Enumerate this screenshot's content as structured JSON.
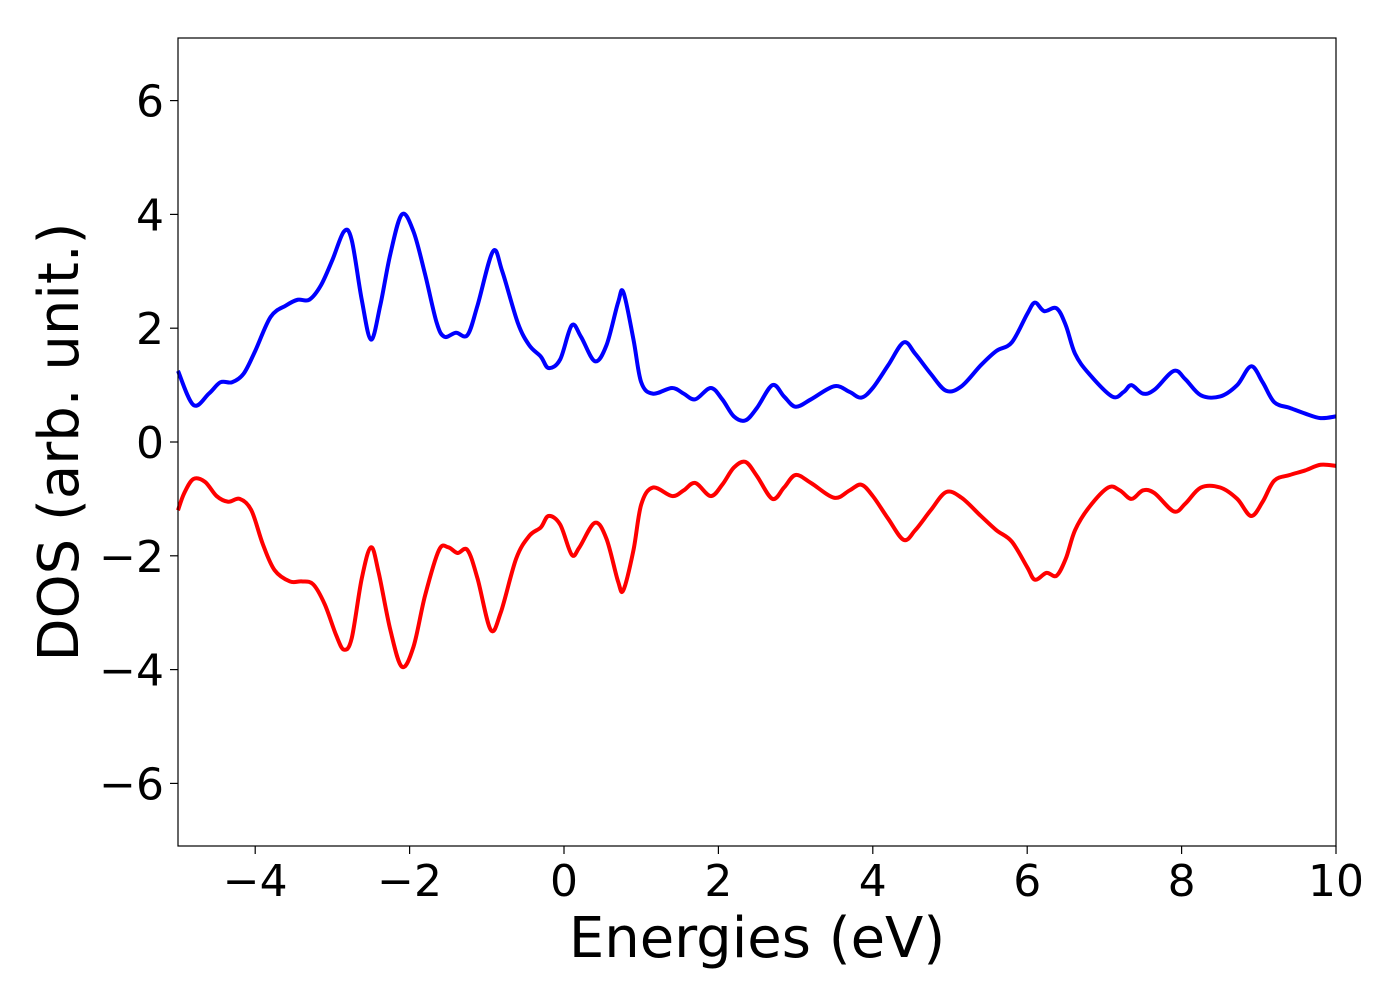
{
  "chart_data": {
    "type": "line",
    "title": "",
    "xlabel": "Energies (eV)",
    "ylabel": "DOS (arb. unit.)",
    "xlim": [
      -5,
      10
    ],
    "ylim": [
      -7.1,
      7.1
    ],
    "xticks": [
      -4,
      -2,
      0,
      2,
      4,
      6,
      8,
      10
    ],
    "xtick_labels": [
      "−4",
      "−2",
      "0",
      "2",
      "4",
      "6",
      "8",
      "10"
    ],
    "yticks": [
      -6,
      -4,
      -2,
      0,
      2,
      4,
      6
    ],
    "ytick_labels": [
      "−6",
      "−4",
      "−2",
      "0",
      "2",
      "4",
      "6"
    ],
    "grid": false,
    "legend": "none",
    "series": [
      {
        "color": "#0000ff",
        "points": [
          [
            -5.0,
            1.25
          ],
          [
            -4.8,
            0.65
          ],
          [
            -4.6,
            0.85
          ],
          [
            -4.45,
            1.05
          ],
          [
            -4.3,
            1.05
          ],
          [
            -4.15,
            1.2
          ],
          [
            -4.0,
            1.6
          ],
          [
            -3.8,
            2.2
          ],
          [
            -3.6,
            2.4
          ],
          [
            -3.45,
            2.5
          ],
          [
            -3.3,
            2.5
          ],
          [
            -3.15,
            2.75
          ],
          [
            -3.0,
            3.2
          ],
          [
            -2.85,
            3.7
          ],
          [
            -2.75,
            3.55
          ],
          [
            -2.62,
            2.5
          ],
          [
            -2.5,
            1.8
          ],
          [
            -2.38,
            2.4
          ],
          [
            -2.25,
            3.3
          ],
          [
            -2.1,
            4.0
          ],
          [
            -1.95,
            3.7
          ],
          [
            -1.8,
            2.95
          ],
          [
            -1.65,
            2.1
          ],
          [
            -1.55,
            1.85
          ],
          [
            -1.4,
            1.92
          ],
          [
            -1.25,
            1.88
          ],
          [
            -1.12,
            2.4
          ],
          [
            -0.92,
            3.35
          ],
          [
            -0.8,
            3.0
          ],
          [
            -0.6,
            2.1
          ],
          [
            -0.45,
            1.7
          ],
          [
            -0.3,
            1.5
          ],
          [
            -0.2,
            1.3
          ],
          [
            -0.05,
            1.45
          ],
          [
            0.1,
            2.05
          ],
          [
            0.22,
            1.85
          ],
          [
            0.4,
            1.42
          ],
          [
            0.55,
            1.7
          ],
          [
            0.7,
            2.45
          ],
          [
            0.77,
            2.63
          ],
          [
            0.9,
            1.8
          ],
          [
            1.0,
            1.05
          ],
          [
            1.15,
            0.85
          ],
          [
            1.4,
            0.95
          ],
          [
            1.55,
            0.85
          ],
          [
            1.7,
            0.75
          ],
          [
            1.9,
            0.95
          ],
          [
            2.05,
            0.75
          ],
          [
            2.2,
            0.45
          ],
          [
            2.35,
            0.38
          ],
          [
            2.5,
            0.6
          ],
          [
            2.7,
            1.0
          ],
          [
            2.85,
            0.8
          ],
          [
            3.0,
            0.62
          ],
          [
            3.2,
            0.75
          ],
          [
            3.5,
            0.98
          ],
          [
            3.7,
            0.88
          ],
          [
            3.85,
            0.78
          ],
          [
            4.0,
            0.95
          ],
          [
            4.2,
            1.35
          ],
          [
            4.4,
            1.75
          ],
          [
            4.55,
            1.55
          ],
          [
            4.75,
            1.2
          ],
          [
            4.95,
            0.9
          ],
          [
            5.15,
            0.98
          ],
          [
            5.4,
            1.35
          ],
          [
            5.6,
            1.6
          ],
          [
            5.8,
            1.75
          ],
          [
            6.0,
            2.25
          ],
          [
            6.1,
            2.45
          ],
          [
            6.22,
            2.3
          ],
          [
            6.38,
            2.35
          ],
          [
            6.5,
            2.05
          ],
          [
            6.62,
            1.55
          ],
          [
            6.8,
            1.2
          ],
          [
            7.1,
            0.8
          ],
          [
            7.25,
            0.88
          ],
          [
            7.35,
            1.0
          ],
          [
            7.5,
            0.85
          ],
          [
            7.65,
            0.92
          ],
          [
            7.9,
            1.25
          ],
          [
            8.05,
            1.1
          ],
          [
            8.25,
            0.82
          ],
          [
            8.5,
            0.8
          ],
          [
            8.72,
            1.0
          ],
          [
            8.9,
            1.33
          ],
          [
            9.05,
            1.05
          ],
          [
            9.2,
            0.7
          ],
          [
            9.4,
            0.6
          ],
          [
            9.6,
            0.5
          ],
          [
            9.8,
            0.42
          ],
          [
            10.0,
            0.45
          ]
        ]
      },
      {
        "color": "#ff0000",
        "points": [
          [
            -5.0,
            -1.2
          ],
          [
            -4.92,
            -0.9
          ],
          [
            -4.8,
            -0.65
          ],
          [
            -4.65,
            -0.7
          ],
          [
            -4.5,
            -0.95
          ],
          [
            -4.35,
            -1.05
          ],
          [
            -4.2,
            -1.0
          ],
          [
            -4.05,
            -1.2
          ],
          [
            -3.9,
            -1.8
          ],
          [
            -3.75,
            -2.25
          ],
          [
            -3.55,
            -2.45
          ],
          [
            -3.4,
            -2.45
          ],
          [
            -3.25,
            -2.5
          ],
          [
            -3.1,
            -2.85
          ],
          [
            -2.95,
            -3.4
          ],
          [
            -2.85,
            -3.65
          ],
          [
            -2.75,
            -3.45
          ],
          [
            -2.62,
            -2.4
          ],
          [
            -2.5,
            -1.85
          ],
          [
            -2.4,
            -2.3
          ],
          [
            -2.25,
            -3.3
          ],
          [
            -2.1,
            -3.95
          ],
          [
            -1.95,
            -3.6
          ],
          [
            -1.8,
            -2.7
          ],
          [
            -1.62,
            -1.9
          ],
          [
            -1.5,
            -1.85
          ],
          [
            -1.38,
            -1.95
          ],
          [
            -1.25,
            -1.9
          ],
          [
            -1.12,
            -2.4
          ],
          [
            -0.95,
            -3.3
          ],
          [
            -0.82,
            -3.0
          ],
          [
            -0.62,
            -2.05
          ],
          [
            -0.45,
            -1.65
          ],
          [
            -0.3,
            -1.5
          ],
          [
            -0.2,
            -1.3
          ],
          [
            -0.05,
            -1.45
          ],
          [
            0.1,
            -1.98
          ],
          [
            0.2,
            -1.85
          ],
          [
            0.4,
            -1.42
          ],
          [
            0.55,
            -1.7
          ],
          [
            0.7,
            -2.45
          ],
          [
            0.77,
            -2.6
          ],
          [
            0.9,
            -1.9
          ],
          [
            1.0,
            -1.1
          ],
          [
            1.15,
            -0.8
          ],
          [
            1.4,
            -0.95
          ],
          [
            1.55,
            -0.85
          ],
          [
            1.7,
            -0.72
          ],
          [
            1.9,
            -0.95
          ],
          [
            2.05,
            -0.75
          ],
          [
            2.2,
            -0.45
          ],
          [
            2.35,
            -0.35
          ],
          [
            2.5,
            -0.6
          ],
          [
            2.7,
            -1.0
          ],
          [
            2.85,
            -0.8
          ],
          [
            3.0,
            -0.58
          ],
          [
            3.2,
            -0.72
          ],
          [
            3.5,
            -0.98
          ],
          [
            3.7,
            -0.85
          ],
          [
            3.85,
            -0.75
          ],
          [
            4.0,
            -0.95
          ],
          [
            4.2,
            -1.35
          ],
          [
            4.4,
            -1.72
          ],
          [
            4.55,
            -1.55
          ],
          [
            4.75,
            -1.2
          ],
          [
            4.95,
            -0.88
          ],
          [
            5.15,
            -0.98
          ],
          [
            5.4,
            -1.3
          ],
          [
            5.6,
            -1.55
          ],
          [
            5.8,
            -1.75
          ],
          [
            6.0,
            -2.2
          ],
          [
            6.1,
            -2.42
          ],
          [
            6.25,
            -2.3
          ],
          [
            6.38,
            -2.35
          ],
          [
            6.5,
            -2.05
          ],
          [
            6.62,
            -1.55
          ],
          [
            6.8,
            -1.15
          ],
          [
            7.05,
            -0.8
          ],
          [
            7.2,
            -0.85
          ],
          [
            7.35,
            -1.0
          ],
          [
            7.5,
            -0.85
          ],
          [
            7.65,
            -0.9
          ],
          [
            7.9,
            -1.22
          ],
          [
            8.05,
            -1.08
          ],
          [
            8.25,
            -0.8
          ],
          [
            8.5,
            -0.8
          ],
          [
            8.72,
            -1.0
          ],
          [
            8.9,
            -1.3
          ],
          [
            9.05,
            -1.05
          ],
          [
            9.2,
            -0.68
          ],
          [
            9.4,
            -0.58
          ],
          [
            9.6,
            -0.5
          ],
          [
            9.8,
            -0.4
          ],
          [
            10.0,
            -0.42
          ]
        ]
      }
    ]
  }
}
